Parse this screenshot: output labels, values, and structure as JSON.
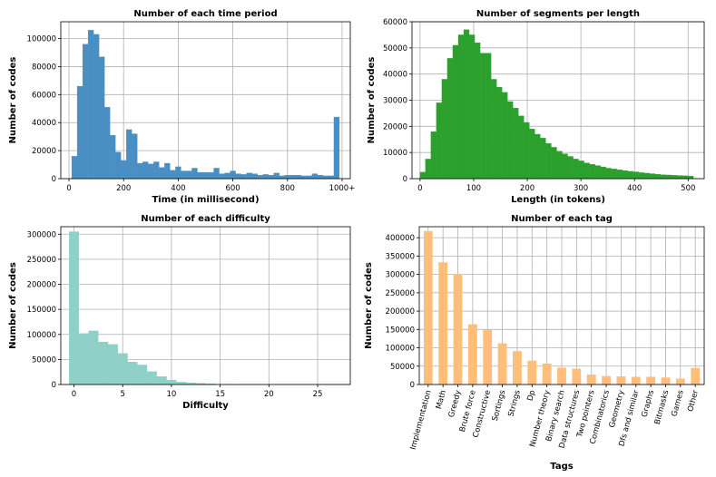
{
  "chart_data": [
    {
      "id": "time",
      "type": "bar",
      "title": "Number of each time period",
      "xlabel": "Time (in millisecond)",
      "ylabel": "Number of codes",
      "xlim": [
        -30,
        1030
      ],
      "ylim": [
        0,
        112000
      ],
      "xticks": [
        0,
        200,
        400,
        600,
        800,
        1000
      ],
      "xtick_labels": [
        "0",
        "200",
        "400",
        "600",
        "800",
        "1000+"
      ],
      "yticks": [
        0,
        20000,
        40000,
        60000,
        80000,
        100000
      ],
      "ytick_labels": [
        "0",
        "20000",
        "40000",
        "60000",
        "80000",
        "100000"
      ],
      "color": "#4a8fc4",
      "grid": true,
      "bin_width": 20,
      "x": [
        20,
        40,
        60,
        80,
        100,
        120,
        140,
        160,
        180,
        200,
        220,
        240,
        260,
        280,
        300,
        320,
        340,
        360,
        380,
        400,
        420,
        440,
        460,
        480,
        500,
        520,
        540,
        560,
        580,
        600,
        620,
        640,
        660,
        680,
        700,
        720,
        740,
        760,
        780,
        800,
        820,
        840,
        860,
        880,
        900,
        920,
        940,
        960,
        980,
        1000
      ],
      "values": [
        16000,
        66000,
        96000,
        106000,
        103000,
        87000,
        51000,
        31000,
        19000,
        13000,
        35000,
        32000,
        11000,
        12000,
        10500,
        12000,
        8000,
        11000,
        6000,
        8500,
        5500,
        5500,
        7500,
        4500,
        4500,
        4500,
        7500,
        3500,
        4000,
        5500,
        3500,
        3000,
        4000,
        3500,
        2500,
        3000,
        2500,
        4000,
        2000,
        2500,
        2500,
        2500,
        2000,
        2000,
        3500,
        2500,
        2000,
        2000,
        44000,
        0
      ]
    },
    {
      "id": "segments",
      "type": "bar",
      "title": "Number of segments per length",
      "xlabel": "Length (in tokens)",
      "ylabel": "Number of codes",
      "xlim": [
        -15,
        530
      ],
      "ylim": [
        0,
        60000
      ],
      "xticks": [
        0,
        100,
        200,
        300,
        400,
        500
      ],
      "xtick_labels": [
        "0",
        "100",
        "200",
        "300",
        "400",
        "500"
      ],
      "yticks": [
        0,
        10000,
        20000,
        30000,
        40000,
        50000,
        60000
      ],
      "ytick_labels": [
        "0",
        "10000",
        "20000",
        "30000",
        "40000",
        "50000",
        "60000"
      ],
      "color": "#2ca02c",
      "grid": true,
      "bin_width": 10.2,
      "x": [
        5,
        15.2,
        25.4,
        35.6,
        45.8,
        56,
        66.2,
        76.4,
        86.6,
        96.8,
        107,
        117.2,
        127.4,
        137.6,
        147.8,
        158,
        168.2,
        178.4,
        188.6,
        198.8,
        209,
        219.2,
        229.4,
        239.6,
        249.8,
        260,
        270.2,
        280.4,
        290.6,
        300.8,
        311,
        321.2,
        331.4,
        341.6,
        351.8,
        362,
        372.2,
        382.4,
        392.6,
        402.8,
        413,
        423.2,
        433.4,
        443.6,
        453.8,
        464,
        474.2,
        484.4,
        494.6,
        504.8
      ],
      "values": [
        2500,
        7500,
        18000,
        29000,
        38000,
        46000,
        51000,
        55000,
        57000,
        55000,
        52000,
        48000,
        48000,
        38000,
        35000,
        33000,
        29500,
        27000,
        24000,
        21500,
        19000,
        17000,
        15500,
        13500,
        12000,
        10500,
        9500,
        8500,
        7500,
        6800,
        6000,
        5500,
        5000,
        4500,
        4000,
        3700,
        3400,
        3100,
        2800,
        2600,
        2300,
        2100,
        1900,
        1700,
        1500,
        1400,
        1300,
        1200,
        1100,
        1000
      ]
    },
    {
      "id": "difficulty",
      "type": "bar",
      "title": "Number of each difficulty",
      "xlabel": "Difficulty",
      "ylabel": "Number of codes",
      "xlim": [
        -1.35,
        28.35
      ],
      "ylim": [
        0,
        315000
      ],
      "xticks": [
        0,
        5,
        10,
        15,
        20,
        25
      ],
      "xtick_labels": [
        "0",
        "5",
        "10",
        "15",
        "20",
        "25"
      ],
      "yticks": [
        0,
        50000,
        100000,
        150000,
        200000,
        250000,
        300000
      ],
      "ytick_labels": [
        "0",
        "50000",
        "100000",
        "150000",
        "200000",
        "250000",
        "300000"
      ],
      "color": "#8fd0c8",
      "grid": true,
      "bin_width": 1,
      "x": [
        0,
        1,
        2,
        3,
        4,
        5,
        6,
        7,
        8,
        9,
        10,
        11,
        12,
        13,
        14,
        15,
        16,
        17,
        18,
        19,
        20,
        21,
        22,
        23,
        24,
        25,
        26
      ],
      "values": [
        305000,
        102000,
        107000,
        85000,
        80000,
        62000,
        45000,
        39000,
        26000,
        16000,
        9000,
        5000,
        3500,
        2500,
        1500,
        500,
        300,
        200,
        100,
        100,
        50,
        50,
        50,
        50,
        50,
        50,
        50
      ]
    },
    {
      "id": "tags",
      "type": "bar",
      "title": "Number of each tag",
      "xlabel": "Tags",
      "ylabel": "Number of codes",
      "ylim": [
        0,
        430000
      ],
      "yticks": [
        0,
        50000,
        100000,
        150000,
        200000,
        250000,
        300000,
        350000,
        400000
      ],
      "ytick_labels": [
        "0",
        "50000",
        "100000",
        "150000",
        "200000",
        "250000",
        "300000",
        "350000",
        "400000"
      ],
      "color": "#ffbf7a",
      "grid": true,
      "categories": [
        "Implementation",
        "Math",
        "Greedy",
        "Brute force",
        "Constructive",
        "Sortings",
        "Strings",
        "Dp",
        "Number theory",
        "Binary search",
        "Data structures",
        "Two pointers",
        "Combinatorics",
        "Geometry",
        "Dfs and similar",
        "Graphs",
        "Bitmasks",
        "Games",
        "Other"
      ],
      "values": [
        418000,
        333000,
        301000,
        164000,
        149000,
        112000,
        91000,
        65000,
        57000,
        46000,
        43000,
        27000,
        23000,
        22000,
        21000,
        21000,
        19000,
        16000,
        45000
      ]
    }
  ]
}
